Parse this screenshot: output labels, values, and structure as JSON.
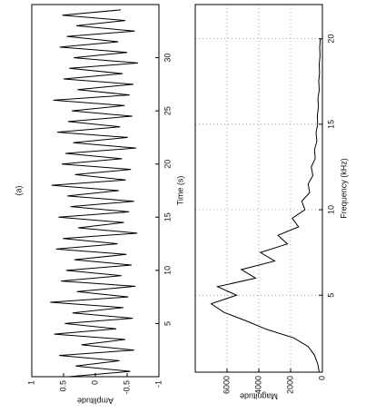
{
  "chart_data": [
    {
      "type": "line",
      "title": "(a)",
      "x_label": "Time (s)",
      "y_label": "Amplitude",
      "color": "#000000",
      "grid": false,
      "x": [
        0,
        0.5,
        1,
        1.5,
        2,
        2.5,
        3,
        3.5,
        4,
        4.5,
        5,
        5.5,
        6,
        6.5,
        7,
        7.5,
        8,
        8.5,
        9,
        9.5,
        10,
        10.5,
        11,
        11.5,
        12,
        12.5,
        13,
        13.5,
        14,
        14.5,
        15,
        15.5,
        16,
        16.5,
        17,
        17.5,
        18,
        18.5,
        19,
        19.5,
        20,
        20.5,
        21,
        21.5,
        22,
        22.5,
        23,
        23.5,
        24,
        24.5,
        25,
        25.5,
        26,
        26.5,
        27,
        27.5,
        28,
        28.5,
        29,
        29.5,
        30,
        30.5,
        31,
        31.5,
        32,
        32.5,
        33,
        33.5,
        34,
        34.5
      ],
      "values": [
        0.42,
        -0.55,
        0.31,
        -0.38,
        0.57,
        -0.61,
        0.22,
        -0.47,
        0.65,
        -0.33,
        0.48,
        -0.59,
        0.36,
        -0.44,
        0.71,
        -0.52,
        0.29,
        -0.63,
        0.54,
        -0.41,
        0.46,
        -0.57,
        0.33,
        -0.49,
        0.62,
        -0.35,
        0.51,
        -0.66,
        0.27,
        -0.45,
        0.58,
        -0.53,
        0.39,
        -0.61,
        0.44,
        -0.37,
        0.69,
        -0.48,
        0.32,
        -0.56,
        0.53,
        -0.42,
        0.47,
        -0.64,
        0.35,
        -0.51,
        0.6,
        -0.39,
        0.43,
        -0.58,
        0.37,
        -0.46,
        0.66,
        -0.54,
        0.28,
        -0.6,
        0.5,
        -0.43,
        0.41,
        -0.67,
        0.34,
        -0.5,
        0.56,
        -0.36,
        0.45,
        -0.62,
        0.3,
        -0.47,
        0.52,
        -0.4
      ],
      "xlim": [
        0,
        35
      ],
      "xticks": [
        5,
        10,
        15,
        20,
        25,
        30
      ],
      "ylim": [
        -1,
        1
      ],
      "yticks": [
        -1,
        -0.5,
        0,
        0.5,
        1
      ]
    },
    {
      "type": "line",
      "x_label": "Frequency (kHz)",
      "y_label": "Magnitude",
      "color": "#000000",
      "grid": true,
      "x": [
        0.5,
        1,
        1.5,
        2,
        2.5,
        3,
        3.5,
        4,
        4.5,
        5,
        5.5,
        6,
        6.5,
        7,
        7.5,
        8,
        8.5,
        9,
        9.5,
        10,
        10.5,
        11,
        11.5,
        12,
        12.5,
        13,
        13.5,
        14,
        14.5,
        15,
        15.5,
        16,
        16.5,
        17,
        17.5,
        18,
        18.5,
        19,
        19.5,
        20
      ],
      "values": [
        200,
        300,
        500,
        900,
        1800,
        3500,
        4800,
        6200,
        7000,
        5400,
        6600,
        4200,
        5100,
        3000,
        3900,
        2200,
        2800,
        1500,
        1900,
        1100,
        1300,
        800,
        900,
        600,
        700,
        450,
        500,
        350,
        400,
        300,
        320,
        250,
        280,
        200,
        230,
        180,
        200,
        150,
        170,
        130
      ],
      "xlim": [
        0.5,
        22
      ],
      "xticks": [
        5,
        10,
        15,
        20
      ],
      "ylim": [
        0,
        8000
      ],
      "yticks": [
        0,
        2000,
        4000,
        6000
      ]
    }
  ]
}
